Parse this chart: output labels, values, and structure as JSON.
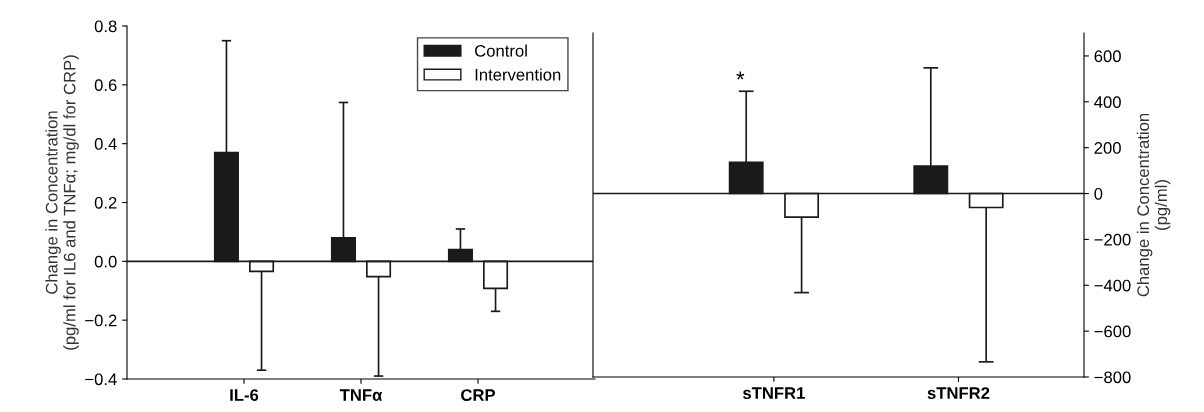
{
  "chart_data": [
    {
      "type": "bar",
      "categories": [
        "IL-6",
        "TNFα",
        "CRP"
      ],
      "ylabel": "Change in Concentration\n(pg/ml for IL6 and TNFα; mg/dl for CRP)",
      "series": [
        {
          "name": "Control",
          "color": "#1a1a1a",
          "values": [
            0.37,
            0.08,
            0.04
          ],
          "errors": [
            [
              0.37,
              0.75
            ],
            [
              0.08,
              0.54
            ],
            [
              0.04,
              0.11
            ]
          ]
        },
        {
          "name": "Intervention",
          "color": "#ffffff",
          "values": [
            -0.034,
            -0.052,
            -0.092
          ],
          "errors": [
            [
              -0.37,
              -0.034
            ],
            [
              -0.39,
              -0.052
            ],
            [
              -0.17,
              -0.092
            ]
          ]
        }
      ],
      "ylim": [
        -0.4,
        0.8
      ],
      "yticks": [
        {
          "value": -0.4,
          "label": "−0.4"
        },
        {
          "value": -0.2,
          "label": "−0.2"
        },
        {
          "value": 0,
          "label": "0.0"
        },
        {
          "value": 0.2,
          "label": "0.2"
        },
        {
          "value": 0.4,
          "label": "0.4"
        },
        {
          "value": 0.6,
          "label": "0.6"
        },
        {
          "value": 0.8,
          "label": "0.8"
        }
      ],
      "ref_lines": [
        {
          "axis": "y",
          "value": 0
        }
      ],
      "legend": "top right",
      "grid": false
    },
    {
      "type": "bar",
      "categories": [
        "sTNFR1",
        "sTNFR2"
      ],
      "y2label": "Change in Concentration\n(pg/ml)",
      "series": [
        {
          "color": "#1a1a1a",
          "axis": "y2",
          "values": [
            136,
            120
          ],
          "errors": [
            [
              136,
              446
            ],
            [
              120,
              548
            ]
          ]
        },
        {
          "color": "#ffffff",
          "axis": "y2",
          "values": [
            -103,
            -61
          ],
          "errors": [
            [
              -432,
              -103
            ],
            [
              -734,
              -61
            ]
          ]
        }
      ],
      "y2lim": [
        -800,
        700
      ],
      "y2ticks": [
        {
          "value": -800,
          "label": "−800"
        },
        {
          "value": -600,
          "label": "−600"
        },
        {
          "value": -400,
          "label": "−400"
        },
        {
          "value": -200,
          "label": "−200"
        },
        0,
        200,
        400,
        600
      ],
      "ref_lines": [
        {
          "axis": "y2",
          "value": 0
        }
      ],
      "annotations": [
        "*"
      ],
      "legend": false,
      "grid": false
    }
  ]
}
